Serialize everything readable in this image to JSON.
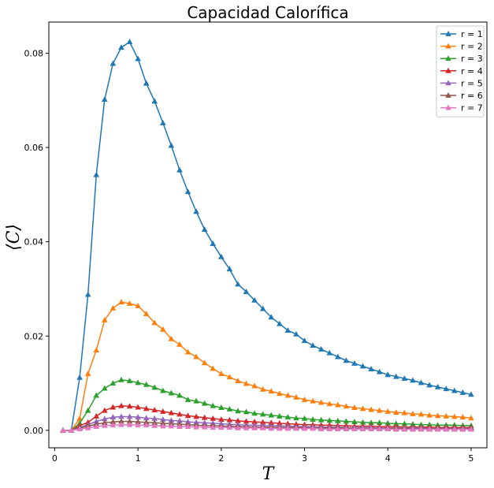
{
  "chart_data": {
    "type": "line",
    "title": "Capacidad Calorífica",
    "xlabel": "T",
    "ylabel": "⟨C⟩",
    "xlim": [
      -0.07,
      5.19
    ],
    "ylim": [
      -0.0037,
      0.0866
    ],
    "xticks": [
      0,
      1,
      2,
      3,
      4,
      5
    ],
    "xtick_labels": [
      "0",
      "1",
      "2",
      "3",
      "4",
      "5"
    ],
    "yticks": [
      0.0,
      0.02,
      0.04,
      0.06,
      0.08
    ],
    "ytick_labels": [
      "0.00",
      "0.02",
      "0.04",
      "0.06",
      "0.08"
    ],
    "grid": false,
    "legend_position": "top-right",
    "marker": "triangle-up",
    "x": [
      0.1,
      0.2,
      0.3,
      0.4,
      0.5,
      0.6,
      0.7,
      0.8,
      0.9,
      1.0,
      1.1,
      1.2,
      1.3,
      1.4,
      1.5,
      1.6,
      1.7,
      1.8,
      1.9,
      2.0,
      2.1,
      2.2,
      2.3,
      2.4,
      2.5,
      2.6,
      2.7,
      2.8,
      2.9,
      3.0,
      3.1,
      3.2,
      3.3,
      3.4,
      3.5,
      3.6,
      3.7,
      3.8,
      3.9,
      4.0,
      4.1,
      4.2,
      4.3,
      4.4,
      4.5,
      4.6,
      4.7,
      4.8,
      4.9,
      5.0
    ],
    "series": [
      {
        "name": "r = 1",
        "color": "#1f77b4",
        "values": [
          0.0,
          0.0,
          0.0112,
          0.0288,
          0.0542,
          0.0702,
          0.0778,
          0.0812,
          0.0824,
          0.0788,
          0.0736,
          0.0698,
          0.0652,
          0.0604,
          0.0552,
          0.0506,
          0.0464,
          0.0426,
          0.0396,
          0.0368,
          0.0342,
          0.031,
          0.0294,
          0.0276,
          0.0258,
          0.024,
          0.0226,
          0.0212,
          0.0204,
          0.019,
          0.018,
          0.0172,
          0.0164,
          0.0156,
          0.0148,
          0.0142,
          0.0136,
          0.013,
          0.0124,
          0.0118,
          0.0114,
          0.011,
          0.0106,
          0.0101,
          0.0096,
          0.0092,
          0.0088,
          0.0084,
          0.008,
          0.0076
        ]
      },
      {
        "name": "r = 2",
        "color": "#ff7f0e",
        "values": [
          0.0,
          0.0,
          0.0025,
          0.012,
          0.017,
          0.0234,
          0.0259,
          0.0272,
          0.0269,
          0.0264,
          0.0247,
          0.0228,
          0.0214,
          0.0194,
          0.0182,
          0.0166,
          0.0156,
          0.0143,
          0.0131,
          0.012,
          0.0113,
          0.0105,
          0.0099,
          0.0094,
          0.0087,
          0.0083,
          0.0078,
          0.0074,
          0.007,
          0.0065,
          0.0062,
          0.0059,
          0.0056,
          0.0054,
          0.0051,
          0.0048,
          0.0046,
          0.0044,
          0.0042,
          0.004,
          0.0038,
          0.0037,
          0.0035,
          0.0034,
          0.0032,
          0.0031,
          0.003,
          0.0029,
          0.0028,
          0.0026
        ]
      },
      {
        "name": "r = 3",
        "color": "#2ca02c",
        "values": [
          0.0,
          0.0,
          0.0015,
          0.0042,
          0.0074,
          0.0089,
          0.01,
          0.0107,
          0.0105,
          0.0101,
          0.0097,
          0.0091,
          0.0084,
          0.0079,
          0.0074,
          0.0065,
          0.0062,
          0.0057,
          0.0052,
          0.0048,
          0.0045,
          0.0041,
          0.0039,
          0.0036,
          0.0034,
          0.0032,
          0.003,
          0.0028,
          0.0026,
          0.0025,
          0.0023,
          0.0022,
          0.0021,
          0.002,
          0.0019,
          0.0018,
          0.0017,
          0.0016,
          0.0016,
          0.0015,
          0.0014,
          0.0014,
          0.0013,
          0.0012,
          0.0012,
          0.0011,
          0.0011,
          0.0011,
          0.001,
          0.001
        ]
      },
      {
        "name": "r = 4",
        "color": "#d62728",
        "values": [
          0.0,
          0.0,
          0.001,
          0.0017,
          0.003,
          0.0042,
          0.0049,
          0.0052,
          0.0051,
          0.0049,
          0.0046,
          0.0043,
          0.004,
          0.0037,
          0.0034,
          0.0031,
          0.0029,
          0.0027,
          0.0025,
          0.0023,
          0.0022,
          0.002,
          0.0019,
          0.0018,
          0.0017,
          0.0016,
          0.0015,
          0.0014,
          0.0013,
          0.0012,
          0.0012,
          0.0011,
          0.0011,
          0.001,
          0.001,
          0.0009,
          0.0009,
          0.0009,
          0.0008,
          0.0008,
          0.0008,
          0.0007,
          0.0007,
          0.0007,
          0.0007,
          0.0006,
          0.0006,
          0.0006,
          0.0006,
          0.0006
        ]
      },
      {
        "name": "r = 5",
        "color": "#9467bd",
        "values": [
          0.0,
          0.0,
          0.0006,
          0.0012,
          0.0019,
          0.0024,
          0.0028,
          0.0029,
          0.0029,
          0.0028,
          0.0026,
          0.0025,
          0.0023,
          0.0021,
          0.002,
          0.0018,
          0.0017,
          0.0016,
          0.0015,
          0.0014,
          0.0013,
          0.0012,
          0.0011,
          0.0011,
          0.001,
          0.001,
          0.0009,
          0.0009,
          0.0008,
          0.0008,
          0.0008,
          0.0007,
          0.0007,
          0.0007,
          0.0006,
          0.0006,
          0.0006,
          0.0006,
          0.0005,
          0.0005,
          0.0005,
          0.0005,
          0.0005,
          0.0005,
          0.0004,
          0.0004,
          0.0004,
          0.0004,
          0.0004,
          0.0004
        ]
      },
      {
        "name": "r = 6",
        "color": "#8c564b",
        "values": [
          0.0,
          0.0,
          0.0005,
          0.0009,
          0.0013,
          0.0016,
          0.0018,
          0.0019,
          0.0019,
          0.0018,
          0.0017,
          0.0016,
          0.0015,
          0.0014,
          0.0013,
          0.0012,
          0.0011,
          0.001,
          0.001,
          0.0009,
          0.0009,
          0.0008,
          0.0008,
          0.0007,
          0.0007,
          0.0007,
          0.0006,
          0.0006,
          0.0006,
          0.0006,
          0.0005,
          0.0005,
          0.0005,
          0.0005,
          0.0005,
          0.0004,
          0.0004,
          0.0004,
          0.0004,
          0.0004,
          0.0004,
          0.0004,
          0.0003,
          0.0003,
          0.0003,
          0.0003,
          0.0003,
          0.0003,
          0.0003,
          0.0003
        ]
      },
      {
        "name": "r = 7",
        "color": "#e377c2",
        "values": [
          0.0,
          0.0,
          0.0003,
          0.0005,
          0.0008,
          0.001,
          0.0011,
          0.0012,
          0.0012,
          0.0011,
          0.0011,
          0.001,
          0.0009,
          0.0009,
          0.0008,
          0.0008,
          0.0007,
          0.0007,
          0.0006,
          0.0006,
          0.0006,
          0.0005,
          0.0005,
          0.0005,
          0.0005,
          0.0004,
          0.0004,
          0.0004,
          0.0004,
          0.0004,
          0.0004,
          0.0003,
          0.0003,
          0.0003,
          0.0003,
          0.0003,
          0.0003,
          0.0003,
          0.0003,
          0.0003,
          0.0002,
          0.0002,
          0.0002,
          0.0002,
          0.0002,
          0.0002,
          0.0002,
          0.0002,
          0.0002,
          0.0002
        ]
      }
    ]
  }
}
